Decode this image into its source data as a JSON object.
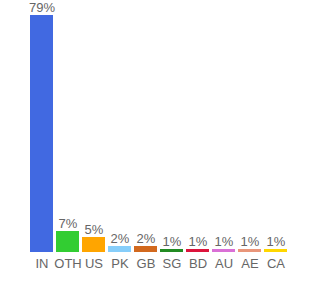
{
  "chart_data": {
    "type": "bar",
    "categories": [
      "IN",
      "OTH",
      "US",
      "PK",
      "GB",
      "SG",
      "BD",
      "AU",
      "AE",
      "CA"
    ],
    "values": [
      79,
      7,
      5,
      2,
      2,
      1,
      1,
      1,
      1,
      1
    ],
    "value_labels": [
      "79%",
      "7%",
      "5%",
      "2%",
      "2%",
      "1%",
      "1%",
      "1%",
      "1%",
      "1%"
    ],
    "colors": [
      "#4169e1",
      "#32cd32",
      "#ffa500",
      "#87cefa",
      "#d2691e",
      "#228b22",
      "#dc143c",
      "#da70d6",
      "#e9967a",
      "#ffd700"
    ],
    "ylim": [
      0,
      79
    ],
    "data_labels": true,
    "tick_labels": "x",
    "grid": false
  }
}
